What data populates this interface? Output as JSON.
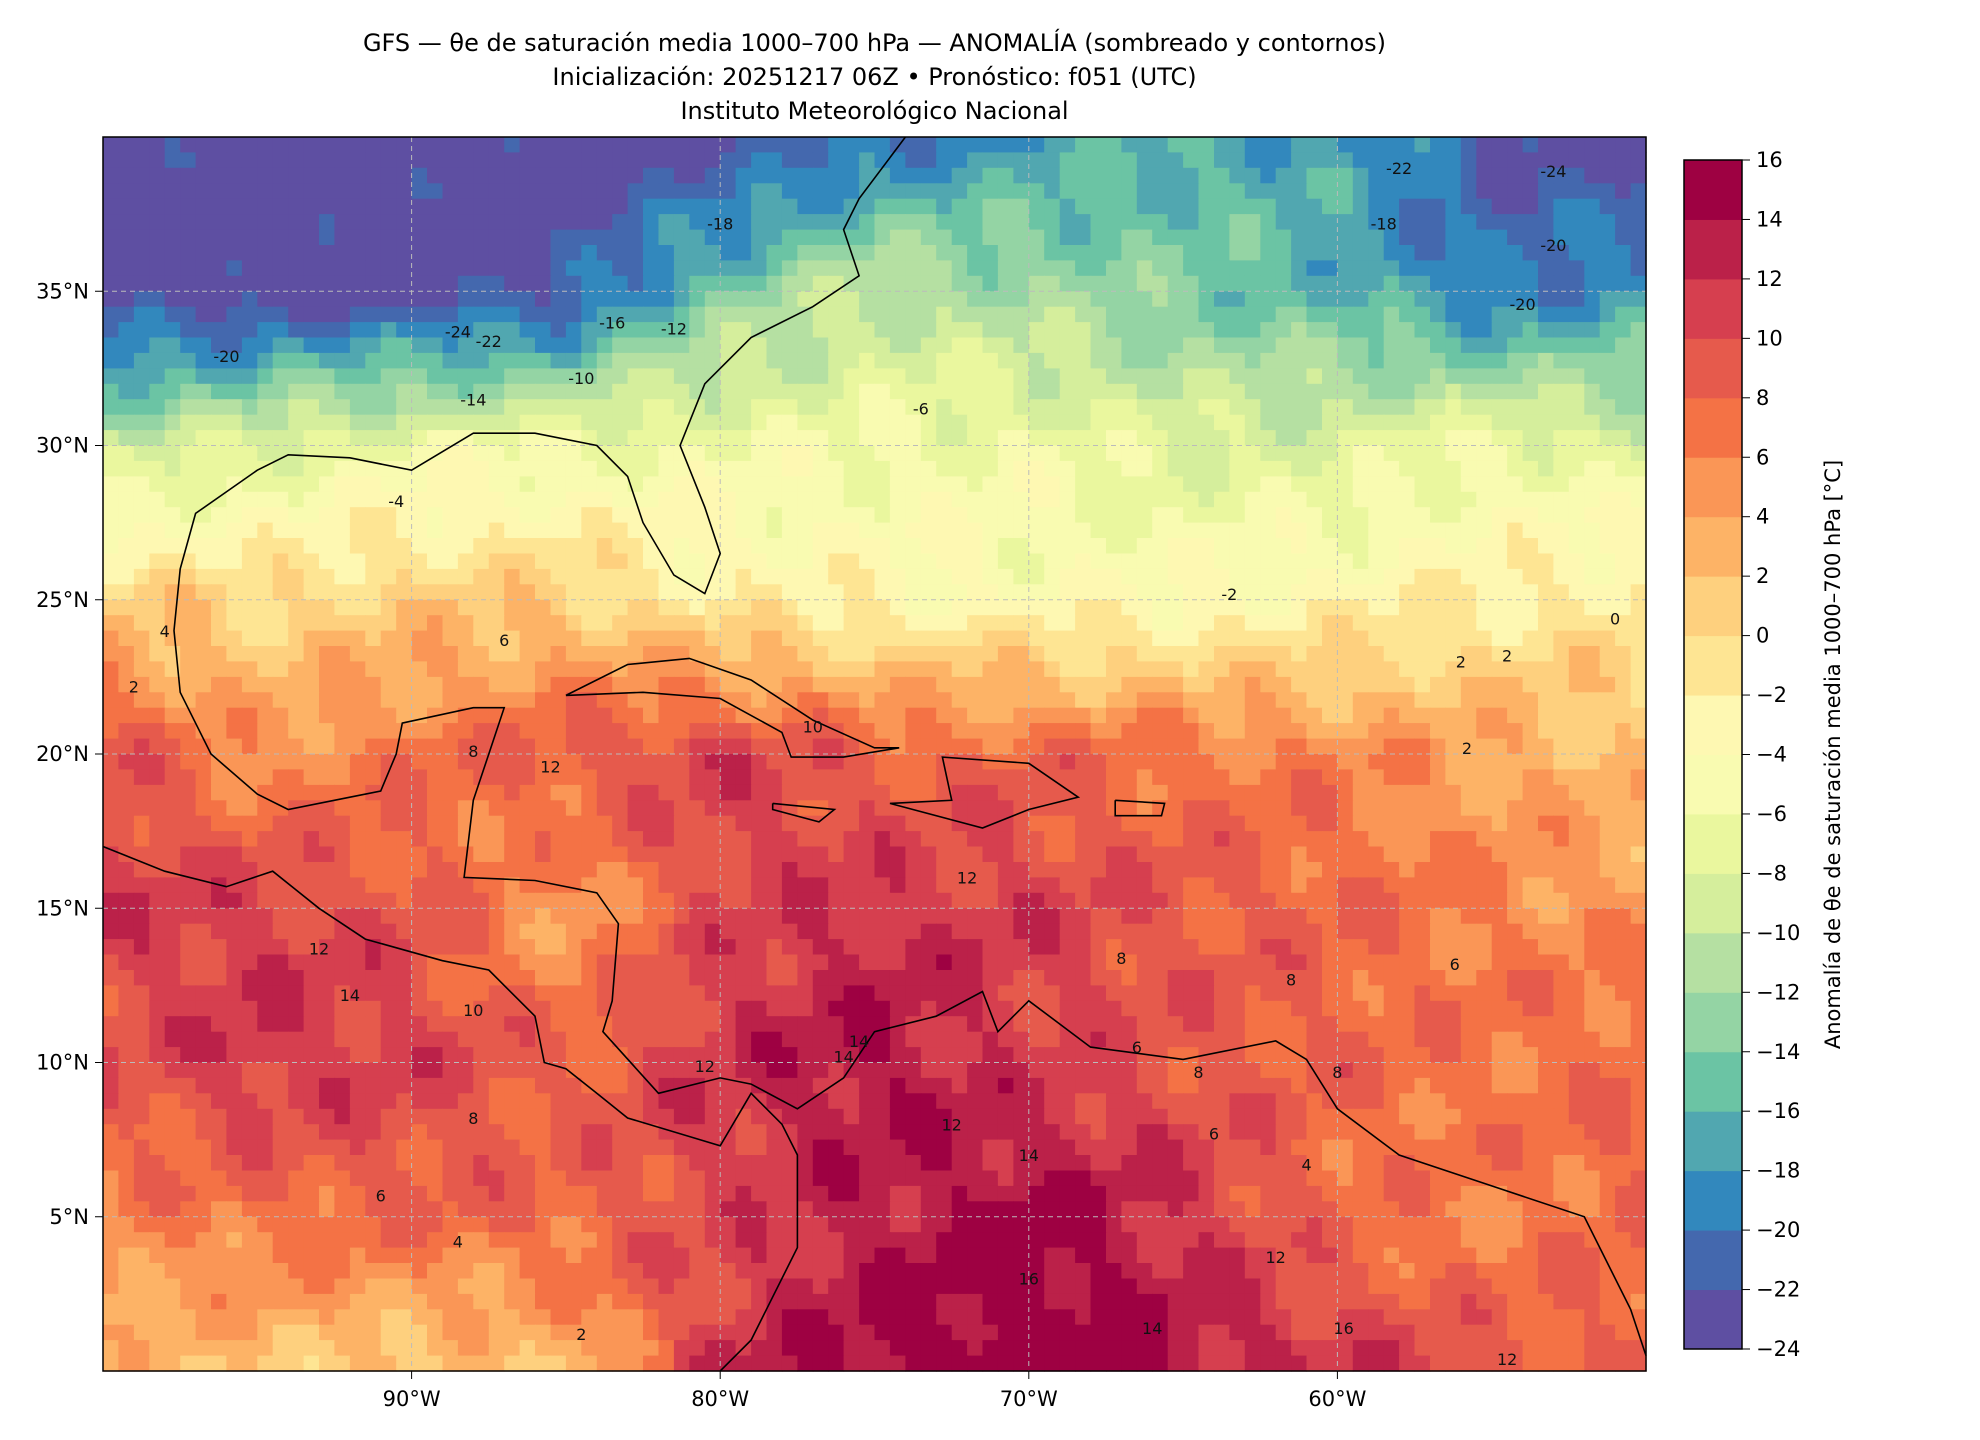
{
  "chart_data": {
    "type": "heatmap",
    "title_lines": [
      "GFS — θe de saturación media 1000–700 hPa — ANOMALÍA (sombreado y contornos)",
      "Inicialización: 20251217 06Z   •   Pronóstico: f051 (UTC)",
      "Instituto Meteorológico Nacional"
    ],
    "xlim": [
      -100,
      -50
    ],
    "ylim": [
      0,
      40
    ],
    "x_ticks": [
      {
        "value": -90,
        "label": "90°W"
      },
      {
        "value": -80,
        "label": "80°W"
      },
      {
        "value": -70,
        "label": "70°W"
      },
      {
        "value": -60,
        "label": "60°W"
      }
    ],
    "y_ticks": [
      {
        "value": 35,
        "label": "35°N"
      },
      {
        "value": 30,
        "label": "30°N"
      },
      {
        "value": 25,
        "label": "25°N"
      },
      {
        "value": 20,
        "label": "20°N"
      },
      {
        "value": 15,
        "label": "15°N"
      },
      {
        "value": 10,
        "label": "10°N"
      },
      {
        "value": 5,
        "label": "5°N"
      }
    ],
    "grid": true,
    "colorbar": {
      "label": "Anomalía de θe de saturación media 1000–700 hPa [°C]",
      "levels": [
        -24,
        -22,
        -20,
        -18,
        -16,
        -14,
        -12,
        -10,
        -8,
        -6,
        -4,
        -2,
        0,
        2,
        4,
        6,
        8,
        10,
        12,
        14,
        16
      ],
      "tick_labels": [
        "−24",
        "−22",
        "−20",
        "−18",
        "−16",
        "−14",
        "−12",
        "−10",
        "−8",
        "−6",
        "−4",
        "−2",
        "0",
        "2",
        "4",
        "6",
        "8",
        "10",
        "12",
        "14",
        "16"
      ],
      "colors": [
        "#5e4fa2",
        "#4468ae",
        "#3288bd",
        "#51a7b0",
        "#6bc4a4",
        "#94d4a4",
        "#b5e0a2",
        "#d5ee9c",
        "#eaf79e",
        "#f9fbb1",
        "#fef8b2",
        "#fee593",
        "#fed07e",
        "#fdb366",
        "#fa9656",
        "#f47245",
        "#e65a4c",
        "#d63f4f",
        "#bb2149",
        "#9e0142"
      ]
    },
    "grid_lons": [
      -100,
      -95,
      -90,
      -85,
      -80,
      -75,
      -70,
      -65,
      -60,
      -55,
      -50
    ],
    "grid_lats": [
      40,
      35,
      30,
      25,
      20,
      15,
      10,
      5,
      0
    ],
    "anomaly_grid": [
      [
        -24,
        -24,
        -24,
        -24,
        -24,
        -20,
        -18,
        -16,
        -18,
        -22,
        -24
      ],
      [
        -24,
        -24,
        -24,
        -22,
        -14,
        -10,
        -12,
        -14,
        -16,
        -20,
        -18
      ],
      [
        -10,
        -8,
        -6,
        -6,
        -6,
        -6,
        -6,
        -8,
        -8,
        -6,
        -8
      ],
      [
        1,
        0,
        1,
        1,
        -2,
        -3,
        -4,
        -4,
        -3,
        -2,
        -1
      ],
      [
        10,
        5,
        7,
        9,
        11,
        8,
        8,
        7,
        6,
        4,
        2
      ],
      [
        11,
        11,
        9,
        4,
        10,
        12,
        11,
        9,
        8,
        6,
        5
      ],
      [
        9,
        12,
        11,
        8,
        12,
        14,
        11,
        9,
        8,
        7,
        8
      ],
      [
        6,
        7,
        8,
        8,
        10,
        13,
        15,
        12,
        7,
        6,
        8
      ],
      [
        2,
        2,
        1,
        2,
        12,
        15,
        16,
        14,
        12,
        9,
        8
      ]
    ],
    "contour_labels": [
      {
        "lon": -88.5,
        "lat": 33.5,
        "text": "-24"
      },
      {
        "lon": -87.5,
        "lat": 33.2,
        "text": "-22"
      },
      {
        "lon": -96,
        "lat": 32.7,
        "text": "-20"
      },
      {
        "lon": -88,
        "lat": 31.3,
        "text": "-14"
      },
      {
        "lon": -84.5,
        "lat": 32.0,
        "text": "-10"
      },
      {
        "lon": -83.5,
        "lat": 33.8,
        "text": "-16"
      },
      {
        "lon": -81.5,
        "lat": 33.6,
        "text": "-12"
      },
      {
        "lon": -80,
        "lat": 37.0,
        "text": "-18"
      },
      {
        "lon": -90.5,
        "lat": 28.0,
        "text": "-4"
      },
      {
        "lon": -73.5,
        "lat": 31.0,
        "text": "-6"
      },
      {
        "lon": -63.5,
        "lat": 25.0,
        "text": "-2"
      },
      {
        "lon": -58,
        "lat": 38.8,
        "text": "-22"
      },
      {
        "lon": -53,
        "lat": 38.7,
        "text": "-24"
      },
      {
        "lon": -58.5,
        "lat": 37.0,
        "text": "-18"
      },
      {
        "lon": -53,
        "lat": 36.3,
        "text": "-20"
      },
      {
        "lon": -54,
        "lat": 34.4,
        "text": "-20"
      },
      {
        "lon": -87,
        "lat": 23.5,
        "text": "6"
      },
      {
        "lon": -85.5,
        "lat": 19.4,
        "text": "12"
      },
      {
        "lon": -77,
        "lat": 20.7,
        "text": "10"
      },
      {
        "lon": -93,
        "lat": 13.5,
        "text": "12"
      },
      {
        "lon": -92,
        "lat": 12,
        "text": "14"
      },
      {
        "lon": -88,
        "lat": 11.5,
        "text": "10"
      },
      {
        "lon": -75.5,
        "lat": 10.5,
        "text": "14"
      },
      {
        "lon": -76,
        "lat": 10,
        "text": "14"
      },
      {
        "lon": -80.5,
        "lat": 9.7,
        "text": "12"
      },
      {
        "lon": -88,
        "lat": 8,
        "text": "8"
      },
      {
        "lon": -91,
        "lat": 5.5,
        "text": "6"
      },
      {
        "lon": -88.5,
        "lat": 4,
        "text": "4"
      },
      {
        "lon": -84.5,
        "lat": 1,
        "text": "2"
      },
      {
        "lon": -70,
        "lat": 2.8,
        "text": "16"
      },
      {
        "lon": -70,
        "lat": 6.8,
        "text": "14"
      },
      {
        "lon": -72.5,
        "lat": 7.8,
        "text": "12"
      },
      {
        "lon": -67,
        "lat": 13.2,
        "text": "8"
      },
      {
        "lon": -66.5,
        "lat": 10.3,
        "text": "6"
      },
      {
        "lon": -64.5,
        "lat": 9.5,
        "text": "8"
      },
      {
        "lon": -60,
        "lat": 9.5,
        "text": "8"
      },
      {
        "lon": -61,
        "lat": 6.5,
        "text": "4"
      },
      {
        "lon": -64,
        "lat": 7.5,
        "text": "6"
      },
      {
        "lon": -56,
        "lat": 22.8,
        "text": "2"
      },
      {
        "lon": -54.5,
        "lat": 23.0,
        "text": "2"
      },
      {
        "lon": -55.8,
        "lat": 20.0,
        "text": "2"
      },
      {
        "lon": -51,
        "lat": 24.2,
        "text": "0"
      },
      {
        "lon": -98,
        "lat": 23.8,
        "text": "4"
      },
      {
        "lon": -99,
        "lat": 22.0,
        "text": "2"
      },
      {
        "lon": -88,
        "lat": 19.9,
        "text": "8"
      },
      {
        "lon": -72,
        "lat": 15.8,
        "text": "12"
      },
      {
        "lon": -61.5,
        "lat": 12.5,
        "text": "8"
      },
      {
        "lon": -56.2,
        "lat": 13,
        "text": "6"
      },
      {
        "lon": -62,
        "lat": 3.5,
        "text": "12"
      },
      {
        "lon": -66,
        "lat": 1.2,
        "text": "14"
      },
      {
        "lon": -59.8,
        "lat": 1.2,
        "text": "16"
      },
      {
        "lon": -54.5,
        "lat": 0.2,
        "text": "12"
      }
    ],
    "coastlines": [
      [
        [
          -74,
          40
        ],
        [
          -75.5,
          38
        ],
        [
          -76,
          37
        ],
        [
          -75.5,
          35.5
        ],
        [
          -77,
          34.5
        ],
        [
          -79,
          33.5
        ],
        [
          -80.5,
          32
        ],
        [
          -81.3,
          30
        ],
        [
          -80.5,
          28
        ],
        [
          -80,
          26.5
        ],
        [
          -80.5,
          25.2
        ],
        [
          -81.5,
          25.8
        ],
        [
          -82.5,
          27.5
        ],
        [
          -83,
          29
        ],
        [
          -84,
          30
        ],
        [
          -86,
          30.4
        ],
        [
          -88,
          30.4
        ],
        [
          -89.5,
          29.5
        ],
        [
          -90,
          29.2
        ],
        [
          -92,
          29.6
        ],
        [
          -94,
          29.7
        ],
        [
          -95,
          29.2
        ],
        [
          -97,
          27.8
        ],
        [
          -97.5,
          26
        ],
        [
          -97.7,
          24
        ],
        [
          -97.5,
          22
        ],
        [
          -96.5,
          20
        ],
        [
          -95,
          18.7
        ],
        [
          -94,
          18.2
        ],
        [
          -92,
          18.6
        ],
        [
          -91,
          18.8
        ],
        [
          -90.5,
          20
        ],
        [
          -90.3,
          21
        ],
        [
          -88,
          21.5
        ],
        [
          -87,
          21.5
        ],
        [
          -87.5,
          20
        ],
        [
          -88,
          18.5
        ],
        [
          -88.3,
          16
        ],
        [
          -86,
          15.9
        ],
        [
          -84,
          15.5
        ],
        [
          -83.3,
          14.5
        ],
        [
          -83.5,
          12
        ],
        [
          -83.8,
          11
        ],
        [
          -82,
          9
        ],
        [
          -80,
          9.5
        ],
        [
          -79,
          9.3
        ],
        [
          -77.5,
          8.5
        ],
        [
          -76,
          9.5
        ],
        [
          -75,
          11
        ],
        [
          -73,
          11.5
        ],
        [
          -71.5,
          12.3
        ],
        [
          -71,
          11
        ],
        [
          -70,
          12
        ],
        [
          -68,
          10.5
        ],
        [
          -65,
          10.1
        ],
        [
          -62,
          10.7
        ],
        [
          -61,
          10.1
        ],
        [
          -60,
          8.5
        ],
        [
          -58,
          7
        ],
        [
          -55,
          6
        ],
        [
          -52,
          5
        ],
        [
          -50.5,
          2
        ],
        [
          -50,
          0.5
        ]
      ],
      [
        [
          -100,
          17
        ],
        [
          -98,
          16.2
        ],
        [
          -96,
          15.7
        ],
        [
          -94.5,
          16.2
        ],
        [
          -93,
          15
        ],
        [
          -91.5,
          14
        ],
        [
          -89,
          13.3
        ],
        [
          -87.5,
          13
        ],
        [
          -86,
          11.5
        ],
        [
          -85.7,
          10
        ],
        [
          -85,
          9.8
        ],
        [
          -84,
          9
        ],
        [
          -83,
          8.2
        ],
        [
          -81,
          7.6
        ],
        [
          -80,
          7.3
        ],
        [
          -79,
          9
        ],
        [
          -78,
          8
        ],
        [
          -77.5,
          7
        ],
        [
          -77.5,
          4
        ],
        [
          -78.5,
          2
        ],
        [
          -79,
          1
        ],
        [
          -80,
          0
        ]
      ],
      [
        [
          -85,
          21.9
        ],
        [
          -83,
          22.9
        ],
        [
          -81,
          23.1
        ],
        [
          -79,
          22.4
        ],
        [
          -77,
          21.1
        ],
        [
          -75,
          20.2
        ],
        [
          -74.2,
          20.2
        ],
        [
          -76,
          19.9
        ],
        [
          -77.7,
          19.9
        ],
        [
          -78,
          20.7
        ],
        [
          -80,
          21.8
        ],
        [
          -82.5,
          22
        ],
        [
          -85,
          21.9
        ]
      ],
      [
        [
          -74.5,
          18.4
        ],
        [
          -72.5,
          18.5
        ],
        [
          -72.8,
          19.9
        ],
        [
          -70,
          19.7
        ],
        [
          -68.4,
          18.6
        ],
        [
          -70,
          18.2
        ],
        [
          -71.5,
          17.6
        ],
        [
          -74.5,
          18.4
        ]
      ],
      [
        [
          -78.3,
          18.4
        ],
        [
          -76.3,
          18.2
        ],
        [
          -76.8,
          17.8
        ],
        [
          -78.3,
          18.2
        ],
        [
          -78.3,
          18.4
        ]
      ],
      [
        [
          -67.2,
          18.5
        ],
        [
          -65.6,
          18.4
        ],
        [
          -65.7,
          18
        ],
        [
          -67.2,
          18
        ],
        [
          -67.2,
          18.5
        ]
      ]
    ]
  }
}
